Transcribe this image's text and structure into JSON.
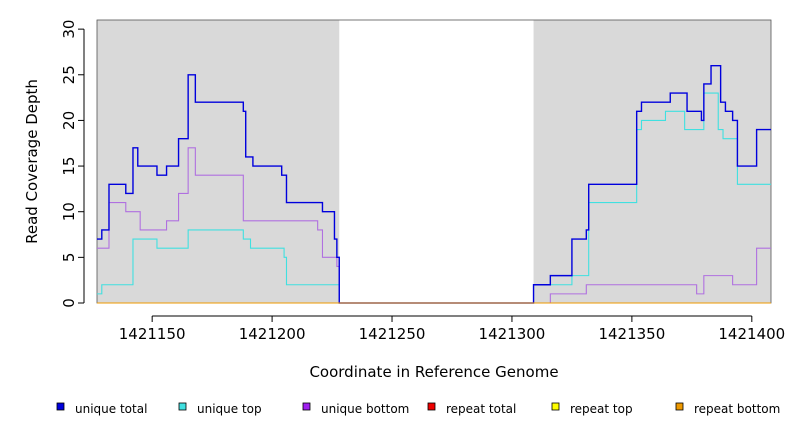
{
  "chart_data": {
    "type": "line",
    "step": true,
    "xlabel": "Coordinate in Reference Genome",
    "ylabel": "Read Coverage Depth",
    "xlim": [
      1421127,
      1421408
    ],
    "ylim": [
      0,
      31
    ],
    "xticks": [
      1421150,
      1421200,
      1421250,
      1421300,
      1421350,
      1421400
    ],
    "yticks": [
      0,
      5,
      10,
      15,
      20,
      25,
      30
    ],
    "shaded_regions": [
      [
        1421127,
        1421228
      ],
      [
        1421309,
        1421408
      ]
    ],
    "colors": {
      "shade": "#d9d9d9",
      "unique_total": "#0000dd",
      "unique_top": "#40e0e0",
      "unique_bottom": "#b070e0",
      "repeat_total": "#ee0000",
      "repeat_top": "#eeee00",
      "repeat_bottom": "#ee9900"
    },
    "series": [
      {
        "name": "unique total",
        "color": "#0000dd",
        "x": [
          1421127,
          1421129,
          1421132,
          1421139,
          1421142,
          1421144,
          1421147,
          1421152,
          1421156,
          1421161,
          1421165,
          1421168,
          1421171,
          1421188,
          1421189,
          1421192,
          1421204,
          1421206,
          1421219,
          1421221,
          1421226,
          1421227,
          1421228,
          1421309,
          1421316,
          1421325,
          1421331,
          1421332,
          1421352,
          1421354,
          1421366,
          1421373,
          1421379,
          1421380,
          1421383,
          1421387,
          1421389,
          1421392,
          1421394,
          1421402,
          1421408
        ],
        "values": [
          7,
          8,
          13,
          12,
          17,
          15,
          15,
          14,
          15,
          18,
          25,
          22,
          22,
          21,
          16,
          15,
          14,
          11,
          11,
          10,
          7,
          5,
          0,
          2,
          3,
          7,
          8,
          13,
          21,
          22,
          23,
          21,
          20,
          24,
          26,
          22,
          21,
          20,
          15,
          19,
          19
        ]
      },
      {
        "name": "unique top",
        "color": "#40e0e0",
        "x": [
          1421127,
          1421129,
          1421142,
          1421152,
          1421165,
          1421188,
          1421191,
          1421205,
          1421206,
          1421228,
          1421309,
          1421325,
          1421332,
          1421352,
          1421354,
          1421364,
          1421372,
          1421380,
          1421386,
          1421388,
          1421394,
          1421408
        ],
        "values": [
          1,
          2,
          7,
          6,
          8,
          7,
          6,
          5,
          2,
          0,
          2,
          3,
          11,
          19,
          20,
          21,
          19,
          23,
          19,
          18,
          13,
          13
        ]
      },
      {
        "name": "unique bottom",
        "color": "#b070e0",
        "x": [
          1421127,
          1421132,
          1421139,
          1421145,
          1421156,
          1421161,
          1421165,
          1421168,
          1421188,
          1421219,
          1421221,
          1421227,
          1421228,
          1421309,
          1421316,
          1421331,
          1421377,
          1421380,
          1421392,
          1421402,
          1421408
        ],
        "values": [
          6,
          11,
          10,
          8,
          9,
          12,
          17,
          14,
          9,
          8,
          5,
          4,
          0,
          0,
          1,
          2,
          1,
          3,
          2,
          6,
          6
        ]
      },
      {
        "name": "repeat total",
        "color": "#ee0000",
        "x": [
          1421127,
          1421408
        ],
        "values": [
          0,
          0
        ]
      },
      {
        "name": "repeat top",
        "color": "#eeee00",
        "x": [
          1421127,
          1421408
        ],
        "values": [
          0,
          0
        ]
      },
      {
        "name": "repeat bottom",
        "color": "#ee9900",
        "x": [
          1421127,
          1421408
        ],
        "values": [
          0,
          0
        ]
      }
    ],
    "legend": [
      {
        "label": "unique total",
        "color": "#0000dd"
      },
      {
        "label": "unique top",
        "color": "#40e0e0"
      },
      {
        "label": "unique bottom",
        "color": "#a020f0"
      },
      {
        "label": "repeat total",
        "color": "#ee0000"
      },
      {
        "label": "repeat top",
        "color": "#ffff00"
      },
      {
        "label": "repeat bottom",
        "color": "#ee9900"
      }
    ]
  }
}
